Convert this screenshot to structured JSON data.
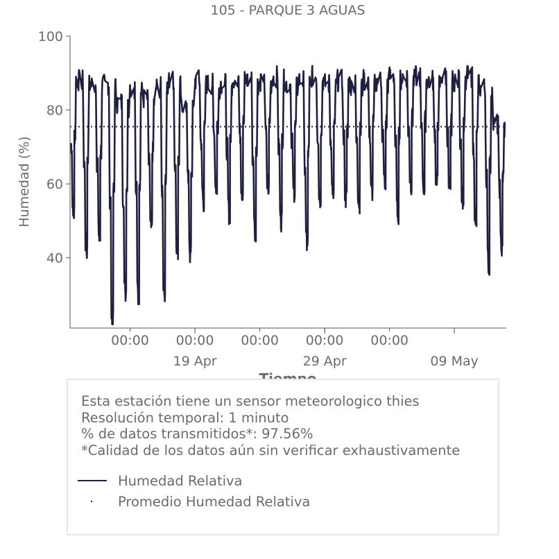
{
  "chart_data": {
    "type": "line",
    "title": "105 - PARQUE 3 AGUAS",
    "xlabel": "Tiempo",
    "ylabel": "Humedad (%)",
    "ylim": [
      21,
      100
    ],
    "xlim": [
      "2025-04-09T09:00",
      "2025-05-12T23:59"
    ],
    "yticks": [
      40,
      60,
      80,
      100
    ],
    "xticks_major": [
      {
        "date": "2025-04-19",
        "label": "19 Apr"
      },
      {
        "date": "2025-04-29",
        "label": "29 Apr"
      },
      {
        "date": "2025-05-09",
        "label": "09 May"
      }
    ],
    "xticks_minor": [
      {
        "date": "2025-04-14T00:00",
        "label": "00:00"
      },
      {
        "date": "2025-04-19T00:00",
        "label": "00:00"
      },
      {
        "date": "2025-04-24T00:00",
        "label": "00:00"
      },
      {
        "date": "2025-04-29T00:00",
        "label": "00:00"
      },
      {
        "date": "2025-05-04T00:00",
        "label": "00:00"
      }
    ],
    "grid": false,
    "legend_placement": "below",
    "series": [
      {
        "name": "Humedad Relativa",
        "style": "solid",
        "color": "#1f2041",
        "daily_min": [
          {
            "date": "2025-04-09",
            "y": 52
          },
          {
            "date": "2025-04-10",
            "y": 42
          },
          {
            "date": "2025-04-11",
            "y": 45
          },
          {
            "date": "2025-04-12",
            "y": 23
          },
          {
            "date": "2025-04-13",
            "y": 31
          },
          {
            "date": "2025-04-14",
            "y": 30
          },
          {
            "date": "2025-04-15",
            "y": 48
          },
          {
            "date": "2025-04-16",
            "y": 31
          },
          {
            "date": "2025-04-17",
            "y": 42
          },
          {
            "date": "2025-04-18",
            "y": 41
          },
          {
            "date": "2025-04-19",
            "y": 55
          },
          {
            "date": "2025-04-20",
            "y": 59
          },
          {
            "date": "2025-04-21",
            "y": 52
          },
          {
            "date": "2025-04-22",
            "y": 58
          },
          {
            "date": "2025-04-23",
            "y": 47
          },
          {
            "date": "2025-04-24",
            "y": 58
          },
          {
            "date": "2025-04-25",
            "y": 50
          },
          {
            "date": "2025-04-26",
            "y": 58
          },
          {
            "date": "2025-04-27",
            "y": 43
          },
          {
            "date": "2025-04-28",
            "y": 56
          },
          {
            "date": "2025-04-29",
            "y": 57
          },
          {
            "date": "2025-04-30",
            "y": 56
          },
          {
            "date": "2025-05-01",
            "y": 55
          },
          {
            "date": "2025-05-02",
            "y": 58
          },
          {
            "date": "2025-05-03",
            "y": 59
          },
          {
            "date": "2025-05-04",
            "y": 52
          },
          {
            "date": "2025-05-05",
            "y": 60
          },
          {
            "date": "2025-05-06",
            "y": 59
          },
          {
            "date": "2025-05-07",
            "y": 60
          },
          {
            "date": "2025-05-08",
            "y": 57
          },
          {
            "date": "2025-05-09",
            "y": 56
          },
          {
            "date": "2025-05-10",
            "y": 50
          },
          {
            "date": "2025-05-11",
            "y": 38
          },
          {
            "date": "2025-05-12",
            "y": 42
          }
        ],
        "daily_max": [
          {
            "date": "2025-04-09",
            "y": 89
          },
          {
            "date": "2025-04-10",
            "y": 88
          },
          {
            "date": "2025-04-11",
            "y": 87
          },
          {
            "date": "2025-04-12",
            "y": 87
          },
          {
            "date": "2025-04-13",
            "y": 82
          },
          {
            "date": "2025-04-14",
            "y": 86
          },
          {
            "date": "2025-04-15",
            "y": 83
          },
          {
            "date": "2025-04-16",
            "y": 86
          },
          {
            "date": "2025-04-17",
            "y": 88
          },
          {
            "date": "2025-04-18",
            "y": 81
          },
          {
            "date": "2025-04-19",
            "y": 88
          },
          {
            "date": "2025-04-20",
            "y": 87
          },
          {
            "date": "2025-04-21",
            "y": 87
          },
          {
            "date": "2025-04-22",
            "y": 89
          },
          {
            "date": "2025-04-23",
            "y": 88
          },
          {
            "date": "2025-04-24",
            "y": 88
          },
          {
            "date": "2025-04-25",
            "y": 89
          },
          {
            "date": "2025-04-26",
            "y": 87
          },
          {
            "date": "2025-04-27",
            "y": 88
          },
          {
            "date": "2025-04-28",
            "y": 89
          },
          {
            "date": "2025-04-29",
            "y": 87
          },
          {
            "date": "2025-04-30",
            "y": 88
          },
          {
            "date": "2025-05-01",
            "y": 87
          },
          {
            "date": "2025-05-02",
            "y": 88
          },
          {
            "date": "2025-05-03",
            "y": 88
          },
          {
            "date": "2025-05-04",
            "y": 89
          },
          {
            "date": "2025-05-05",
            "y": 89
          },
          {
            "date": "2025-05-06",
            "y": 89
          },
          {
            "date": "2025-05-07",
            "y": 88
          },
          {
            "date": "2025-05-08",
            "y": 89
          },
          {
            "date": "2025-05-09",
            "y": 88
          },
          {
            "date": "2025-05-10",
            "y": 89
          },
          {
            "date": "2025-05-11",
            "y": 86
          },
          {
            "date": "2025-05-12",
            "y": 76
          }
        ]
      },
      {
        "name": "Promedio Humedad Relativa",
        "style": "dotted",
        "color": "#1f2041",
        "value": 75.5
      }
    ]
  },
  "info": {
    "lines": [
      "Esta estación tiene un sensor meteorologico thies",
      "Resolución temporal: 1 minuto",
      "% de datos transmitidos*: 97.56%",
      "*Calidad de los datos aún sin verificar exhaustivamente"
    ]
  },
  "legend": {
    "items": [
      {
        "label": "Humedad Relativa",
        "symbol": "solid-line"
      },
      {
        "label": "Promedio Humedad Relativa",
        "symbol": "dot"
      }
    ]
  }
}
